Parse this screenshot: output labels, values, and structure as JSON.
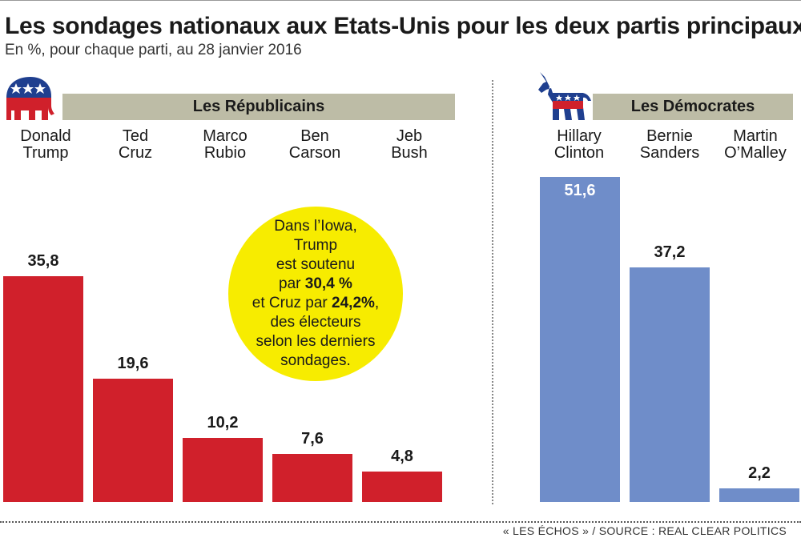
{
  "title": "Les sondages nationaux aux Etats-Unis pour les deux partis principaux",
  "subtitle": "En %, pour chaque parti, au 28 janvier 2016",
  "source": "« LES ÉCHOS » / SOURCE : REAL CLEAR POLITICS",
  "colors": {
    "republican": "#d0202b",
    "democrat": "#6f8dc9",
    "band": "#bdbca6",
    "bubble": "#f7ec00"
  },
  "icons": {
    "republican": "republican-elephant-icon",
    "democrat": "democrat-donkey-icon"
  },
  "annotation": {
    "l1": "Dans l’Iowa,",
    "l2": "Trump",
    "l3": "est soutenu",
    "l4a": "par ",
    "l4b": "30,4 %",
    "l5a": "et Cruz par ",
    "l5b": "24,2%",
    "l5c": ",",
    "l6": "des électeurs",
    "l7": "selon les derniers",
    "l8": "sondages."
  },
  "chart_data": [
    {
      "type": "bar",
      "party_label": "Les Républicains",
      "candidates": [
        {
          "line1": "Donald",
          "line2": "Trump",
          "label": "35,8"
        },
        {
          "line1": "Ted",
          "line2": "Cruz",
          "label": "19,6"
        },
        {
          "line1": "Marco",
          "line2": "Rubio",
          "label": "10,2"
        },
        {
          "line1": "Ben",
          "line2": "Carson",
          "label": "7,6"
        },
        {
          "line1": "Jeb",
          "line2": "Bush",
          "label": "4,8"
        }
      ],
      "values": [
        35.8,
        19.6,
        10.2,
        7.6,
        4.8
      ],
      "unit": "%"
    },
    {
      "type": "bar",
      "party_label": "Les Démocrates",
      "candidates": [
        {
          "line1": "Hillary",
          "line2": "Clinton",
          "label": "51,6"
        },
        {
          "line1": "Bernie",
          "line2": "Sanders",
          "label": "37,2"
        },
        {
          "line1": "Martin",
          "line2": "O’Malley",
          "label": "2,2"
        }
      ],
      "values": [
        51.6,
        37.2,
        2.2
      ],
      "unit": "%"
    }
  ]
}
